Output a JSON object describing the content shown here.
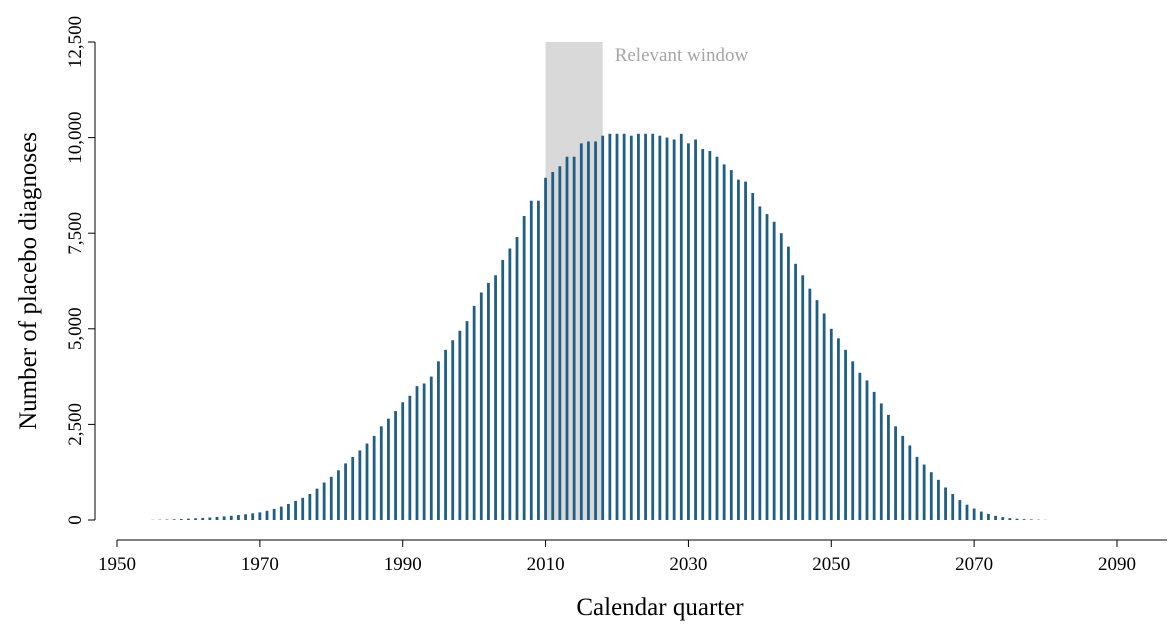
{
  "chart_data": {
    "type": "bar",
    "x_label": "Calendar quarter",
    "y_label": "Number of placebo diagnoses",
    "color": "#1f5f86",
    "window": {
      "range": [
        2010,
        2018
      ],
      "label": "Relevant window",
      "color": "#d9d9d9"
    },
    "xlim": [
      1950,
      2097
    ],
    "ylim": [
      0,
      12500
    ],
    "xticks": [
      1950,
      1970,
      1990,
      2010,
      2030,
      2050,
      2070,
      2090
    ],
    "yticks": [
      0,
      {
        "value": 2500,
        "label": "2,500"
      },
      {
        "value": 5000,
        "label": "5,000"
      },
      {
        "value": 7500,
        "label": "7,500"
      },
      {
        "value": 10000,
        "label": "10,000"
      },
      {
        "value": 12500,
        "label": "12,500"
      }
    ],
    "x": [
      1955,
      1956,
      1957,
      1958,
      1959,
      1960,
      1961,
      1962,
      1963,
      1964,
      1965,
      1966,
      1967,
      1968,
      1969,
      1970,
      1971,
      1972,
      1973,
      1974,
      1975,
      1976,
      1977,
      1978,
      1979,
      1980,
      1981,
      1982,
      1983,
      1984,
      1985,
      1986,
      1987,
      1988,
      1989,
      1990,
      1991,
      1992,
      1993,
      1994,
      1995,
      1996,
      1997,
      1998,
      1999,
      2000,
      2001,
      2002,
      2003,
      2004,
      2005,
      2006,
      2007,
      2008,
      2009,
      2010,
      2011,
      2012,
      2013,
      2014,
      2015,
      2016,
      2017,
      2018,
      2019,
      2020,
      2021,
      2022,
      2023,
      2024,
      2025,
      2026,
      2027,
      2028,
      2029,
      2030,
      2031,
      2032,
      2033,
      2034,
      2035,
      2036,
      2037,
      2038,
      2039,
      2040,
      2041,
      2042,
      2043,
      2044,
      2045,
      2046,
      2047,
      2048,
      2049,
      2050,
      2051,
      2052,
      2053,
      2054,
      2055,
      2056,
      2057,
      2058,
      2059,
      2060,
      2061,
      2062,
      2063,
      2064,
      2065,
      2066,
      2067,
      2068,
      2069,
      2070,
      2071,
      2072,
      2073,
      2074,
      2075,
      2076,
      2077,
      2078,
      2079,
      2080
    ],
    "values": [
      5,
      8,
      12,
      18,
      25,
      35,
      45,
      55,
      65,
      80,
      95,
      110,
      130,
      150,
      175,
      200,
      240,
      290,
      350,
      420,
      500,
      580,
      680,
      820,
      980,
      1130,
      1300,
      1480,
      1650,
      1820,
      2000,
      2200,
      2450,
      2650,
      2850,
      3080,
      3250,
      3500,
      3570,
      3750,
      4150,
      4450,
      4700,
      4950,
      5200,
      5600,
      5950,
      6200,
      6400,
      6800,
      7100,
      7400,
      7950,
      8350,
      8350,
      8950,
      9100,
      9250,
      9500,
      9500,
      9850,
      9900,
      9900,
      10050,
      10100,
      10100,
      10100,
      10050,
      10100,
      10100,
      10100,
      10050,
      10000,
      9950,
      10100,
      9850,
      9950,
      9700,
      9650,
      9500,
      9300,
      9150,
      8900,
      8850,
      8550,
      8200,
      8000,
      7800,
      7500,
      7150,
      6700,
      6400,
      6050,
      5750,
      5400,
      5000,
      4750,
      4450,
      4150,
      3850,
      3650,
      3350,
      3050,
      2750,
      2450,
      2200,
      1950,
      1650,
      1450,
      1250,
      1050,
      850,
      680,
      520,
      400,
      300,
      220,
      160,
      110,
      75,
      50,
      35,
      22,
      15,
      8,
      4
    ]
  }
}
